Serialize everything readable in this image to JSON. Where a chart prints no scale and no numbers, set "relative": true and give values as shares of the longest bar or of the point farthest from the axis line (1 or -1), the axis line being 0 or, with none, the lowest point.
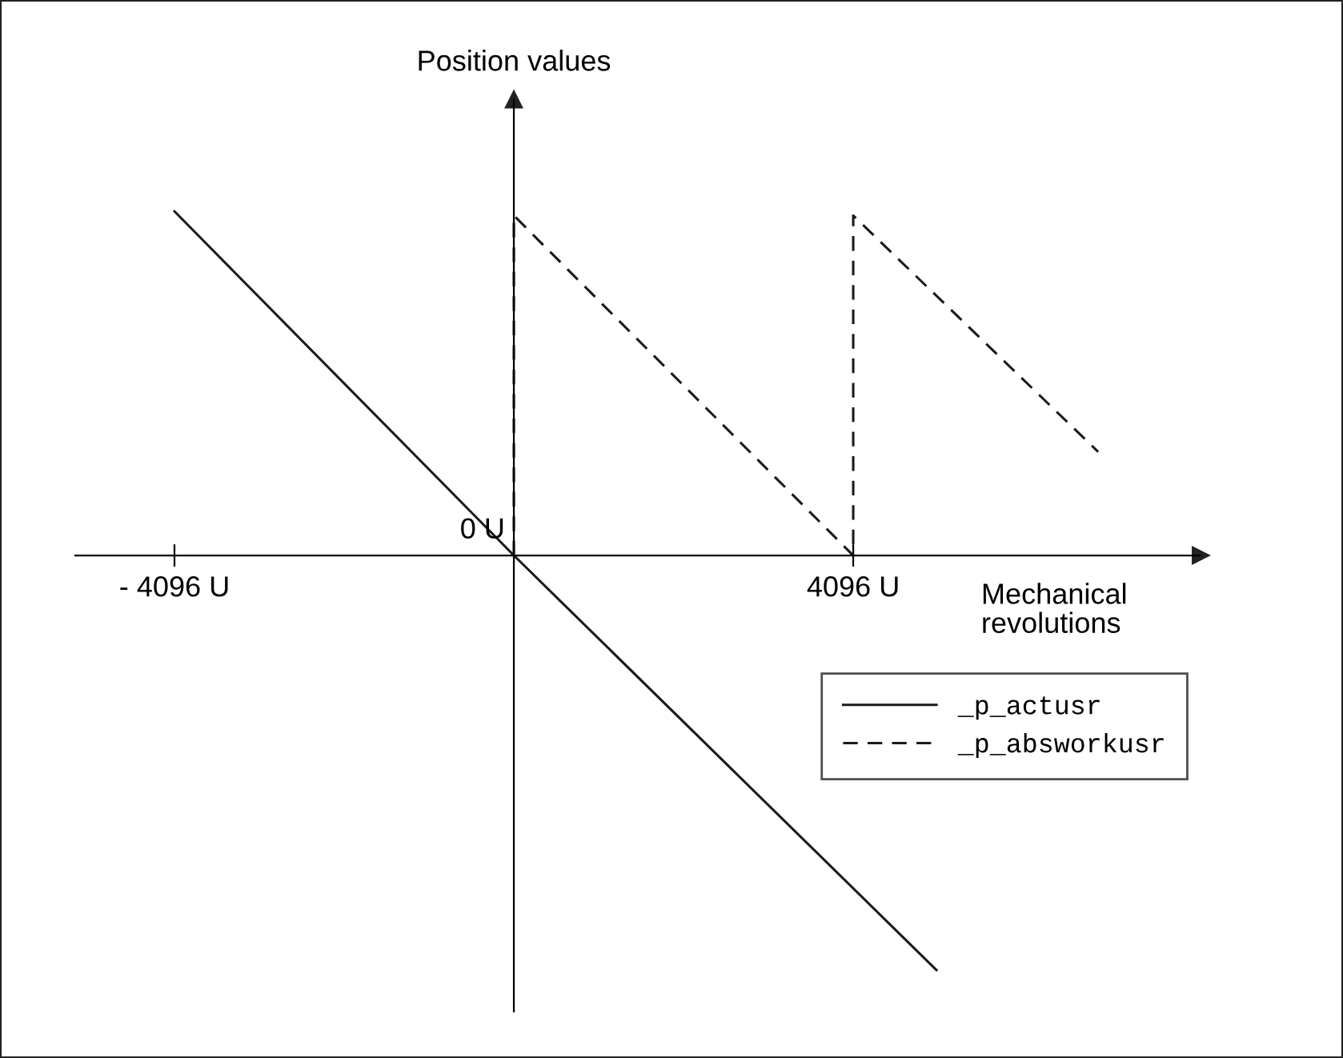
{
  "chart_data": {
    "type": "line",
    "relative": true,
    "xlabel": "Mechanical\nrevolutions",
    "ylabel": "Position values",
    "xlim": [
      -5294,
      8289
    ],
    "xticks": [
      {
        "value": -4096,
        "label": "- 4096 U"
      },
      {
        "value": 4096,
        "label": "4096 U"
      }
    ],
    "annotations": [
      {
        "text": "0 U",
        "x": 0,
        "y": 0
      }
    ],
    "series": [
      {
        "name": "_p_actusr",
        "color": "#1a1a1a",
        "line_style": "solid",
        "x": [
          -4096,
          0,
          5100
        ],
        "values": [
          0.83,
          0,
          -1
        ]
      },
      {
        "name": "_p_absworkusr",
        "color": "#1a1a1a",
        "line_style": "dashed",
        "x": [
          0,
          0,
          4096,
          4096,
          7052
        ],
        "values": [
          0,
          0.82,
          0,
          0.82,
          0.25
        ]
      }
    ],
    "legend": "bottom right",
    "grid": false,
    "marker": "none"
  }
}
